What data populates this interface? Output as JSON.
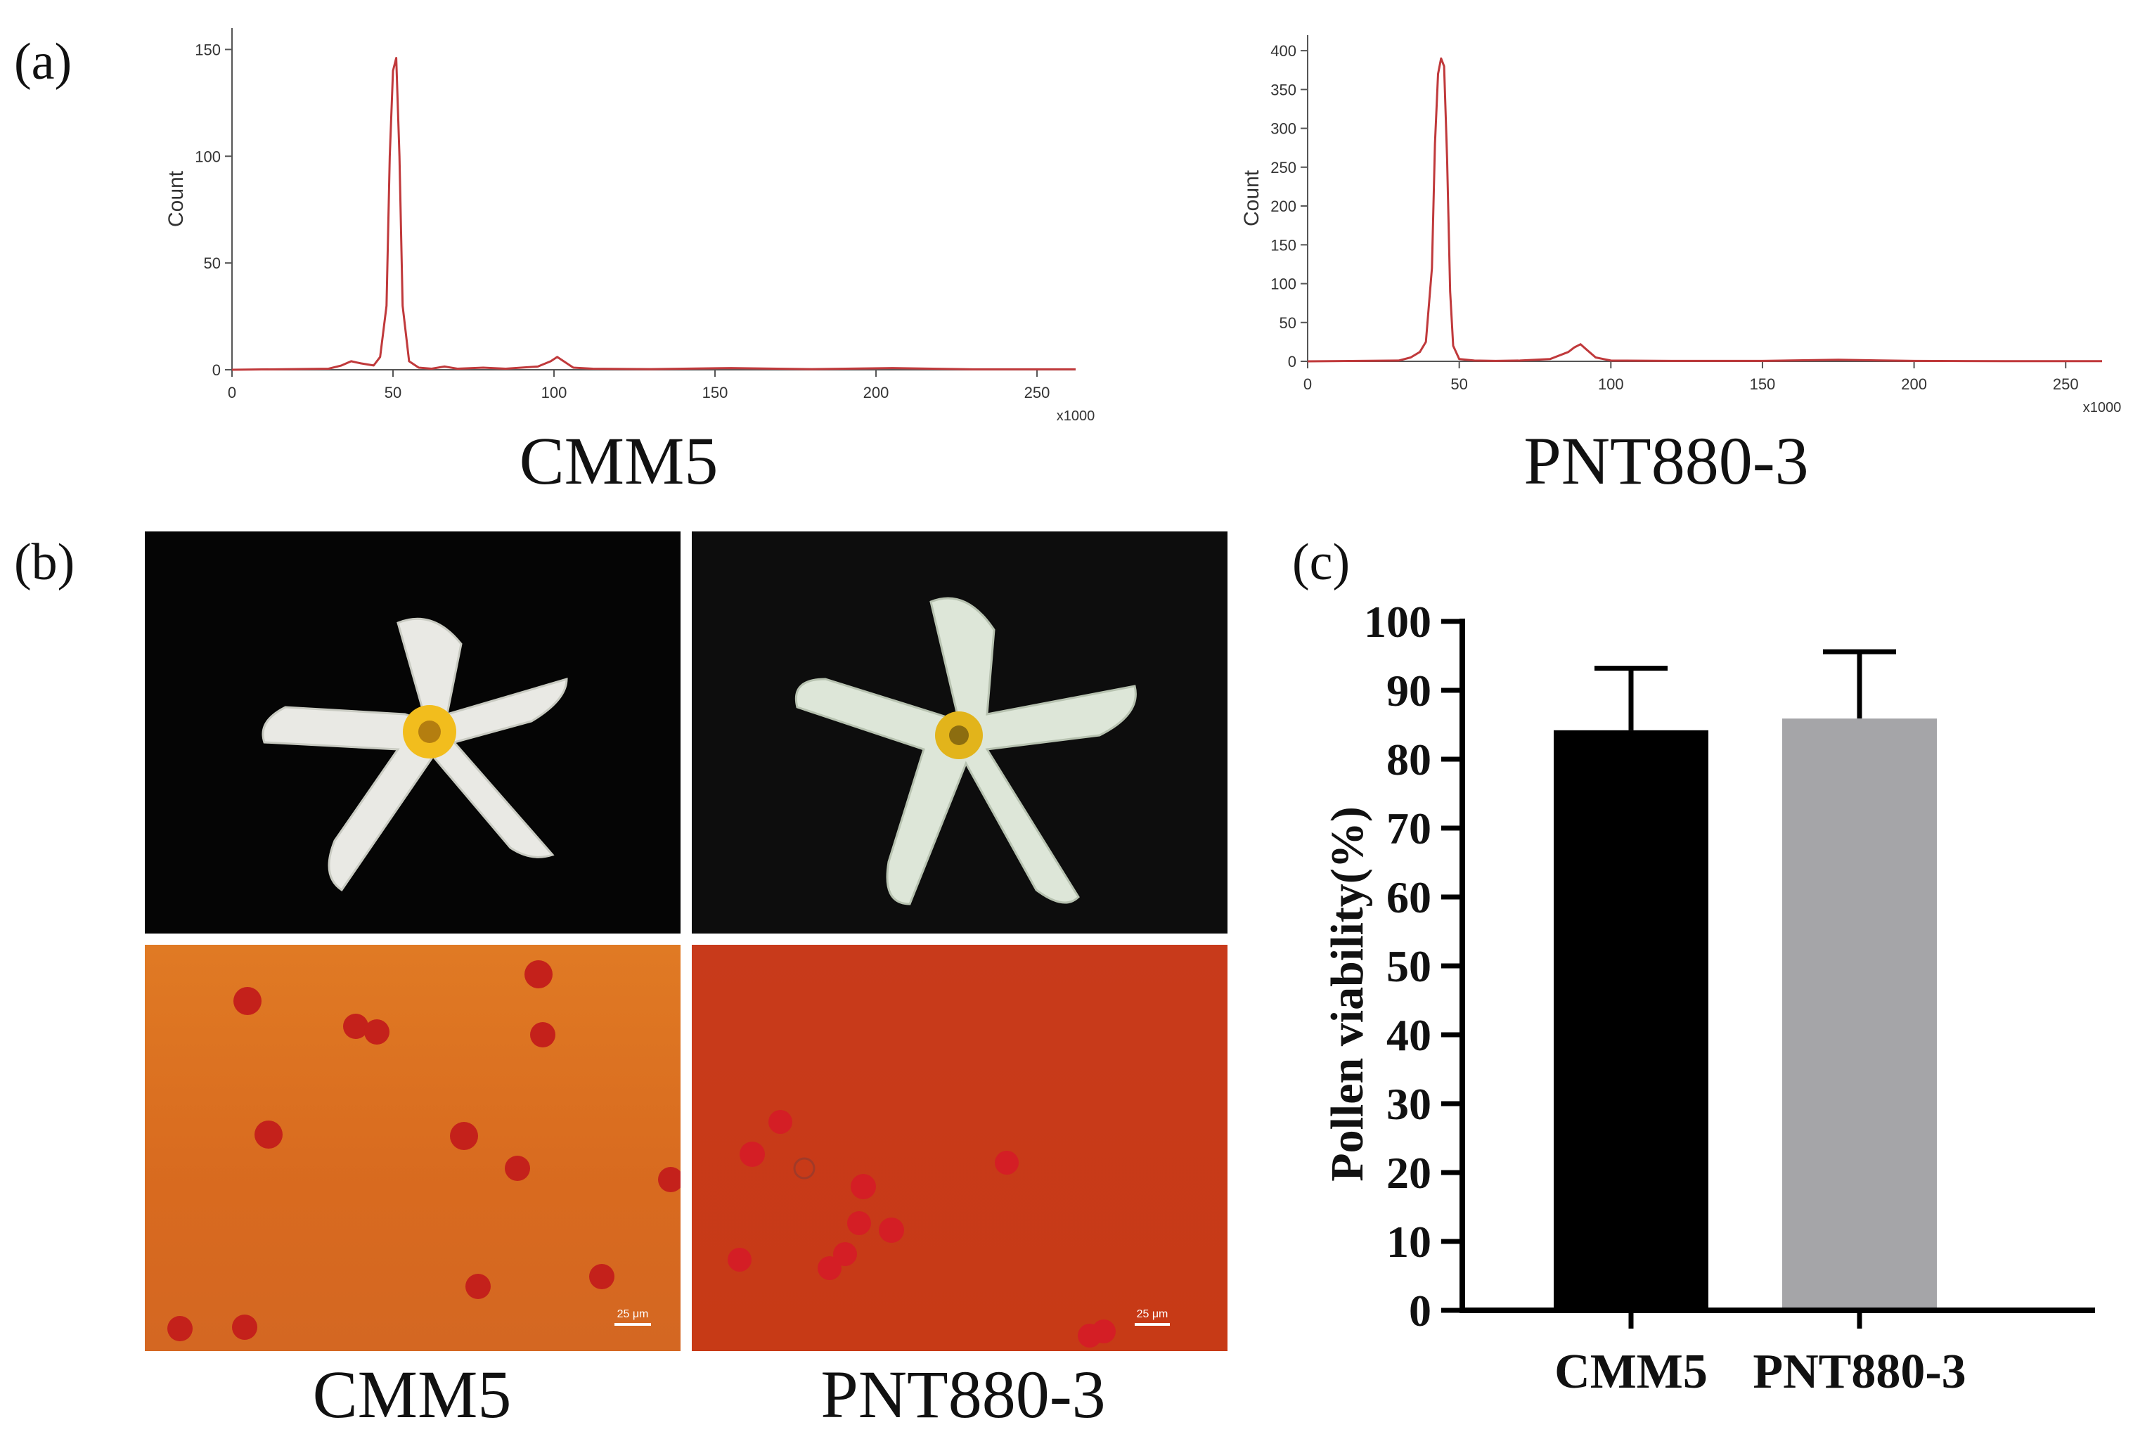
{
  "panels": {
    "a_label": "(a)",
    "b_label": "(b)",
    "c_label": "(c)"
  },
  "captions": {
    "a_left": "CMM5",
    "a_right": "PNT880-3",
    "b_left": "CMM5",
    "b_right": "PNT880-3"
  },
  "photos": {
    "scale_bar_left": "25 μm",
    "scale_bar_right": "25 μm"
  },
  "colors": {
    "histogram_line": "#c0393b",
    "bar_cmm5": "#000000",
    "bar_pnt": "#a5a5a8",
    "flower_bg": "#050505",
    "stain_left": "#d96a1e",
    "stain_right": "#c8361a"
  },
  "chart_data": [
    {
      "type": "line",
      "id": "hist-cmm5",
      "ylabel": "Count",
      "xunit": "x1000",
      "xlim": [
        0,
        262
      ],
      "ylim": [
        0,
        160
      ],
      "xticks": [
        0,
        50,
        100,
        150,
        200,
        250
      ],
      "yticks": [
        0,
        50,
        100,
        150
      ],
      "x": [
        0,
        30,
        34,
        37,
        40,
        44,
        46,
        48,
        49,
        50,
        51,
        52,
        53,
        55,
        58,
        62,
        66,
        70,
        78,
        85,
        95,
        99,
        101,
        103,
        106,
        112,
        130,
        155,
        180,
        205,
        230,
        262
      ],
      "y": [
        0,
        0.5,
        2,
        4,
        3,
        2,
        6,
        30,
        100,
        140,
        146,
        100,
        30,
        4,
        1,
        0.5,
        1.5,
        0.5,
        1,
        0.5,
        1.5,
        4,
        6,
        4,
        1,
        0.5,
        0.3,
        0.8,
        0.3,
        0.8,
        0.2,
        0.2
      ]
    },
    {
      "type": "line",
      "id": "hist-pnt880",
      "ylabel": "Count",
      "xunit": "x1000",
      "xlim": [
        0,
        262
      ],
      "ylim": [
        0,
        420
      ],
      "xticks": [
        0,
        50,
        100,
        150,
        200,
        250
      ],
      "yticks": [
        0,
        50,
        100,
        150,
        200,
        250,
        300,
        350,
        400
      ],
      "x": [
        0,
        30,
        34,
        37,
        39,
        41,
        42,
        43,
        44,
        45,
        46,
        47,
        48,
        50,
        55,
        62,
        70,
        80,
        86,
        88,
        90,
        92,
        95,
        100,
        120,
        150,
        175,
        200,
        230,
        262
      ],
      "y": [
        0,
        1,
        5,
        12,
        25,
        120,
        280,
        370,
        390,
        380,
        260,
        90,
        20,
        3,
        1,
        0.5,
        1,
        3,
        12,
        18,
        22,
        15,
        5,
        1,
        0.5,
        0.5,
        2,
        0.5,
        0.3,
        0.2
      ]
    },
    {
      "type": "bar",
      "id": "pollen-viability",
      "ylabel": "Pollen viability(%)",
      "ylim": [
        0,
        100
      ],
      "yticks": [
        0,
        10,
        20,
        30,
        40,
        50,
        60,
        70,
        80,
        90,
        100
      ],
      "categories": [
        "CMM5",
        "PNT880-3"
      ],
      "values": [
        84.2,
        85.9
      ],
      "error": [
        9.0,
        9.7
      ]
    }
  ]
}
